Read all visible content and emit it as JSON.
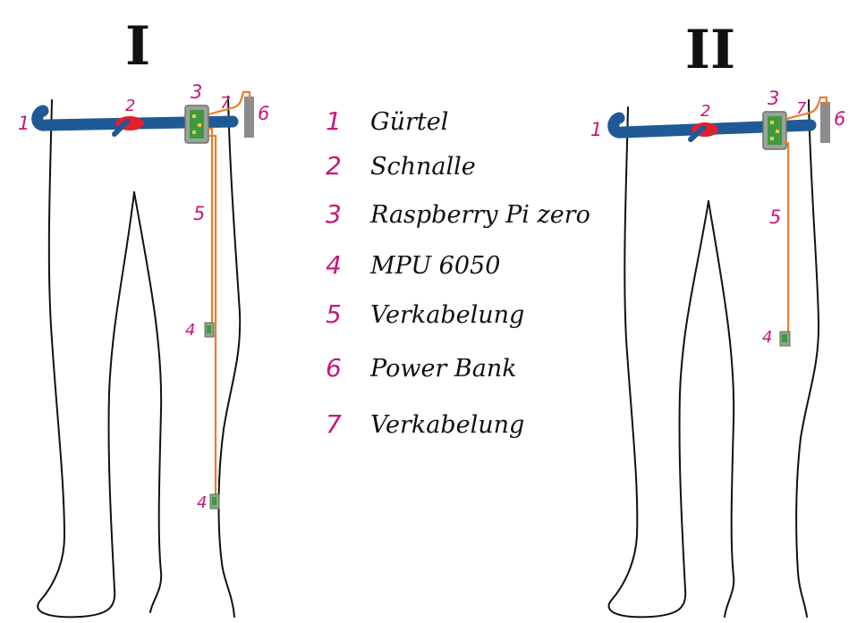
{
  "figures": [
    {
      "roman": "I"
    },
    {
      "roman": "II"
    }
  ],
  "legend": [
    {
      "num": "1",
      "text": "Gürtel"
    },
    {
      "num": "2",
      "text": "Schnalle"
    },
    {
      "num": "3",
      "text": "Raspberry Pi zero"
    },
    {
      "num": "4",
      "text": "MPU 6050"
    },
    {
      "num": "5",
      "text": "Verkabelung"
    },
    {
      "num": "6",
      "text": "Power Bank"
    },
    {
      "num": "7",
      "text": "Verkabelung"
    }
  ],
  "colors": {
    "belt": "#1f5a96",
    "buckle": "#e02030",
    "board": "#9aa39a",
    "board_inner": "#3f9a3f",
    "powerbank": "#8c8c8c",
    "wire": "#ee7c2b",
    "label": "#c8177a"
  }
}
